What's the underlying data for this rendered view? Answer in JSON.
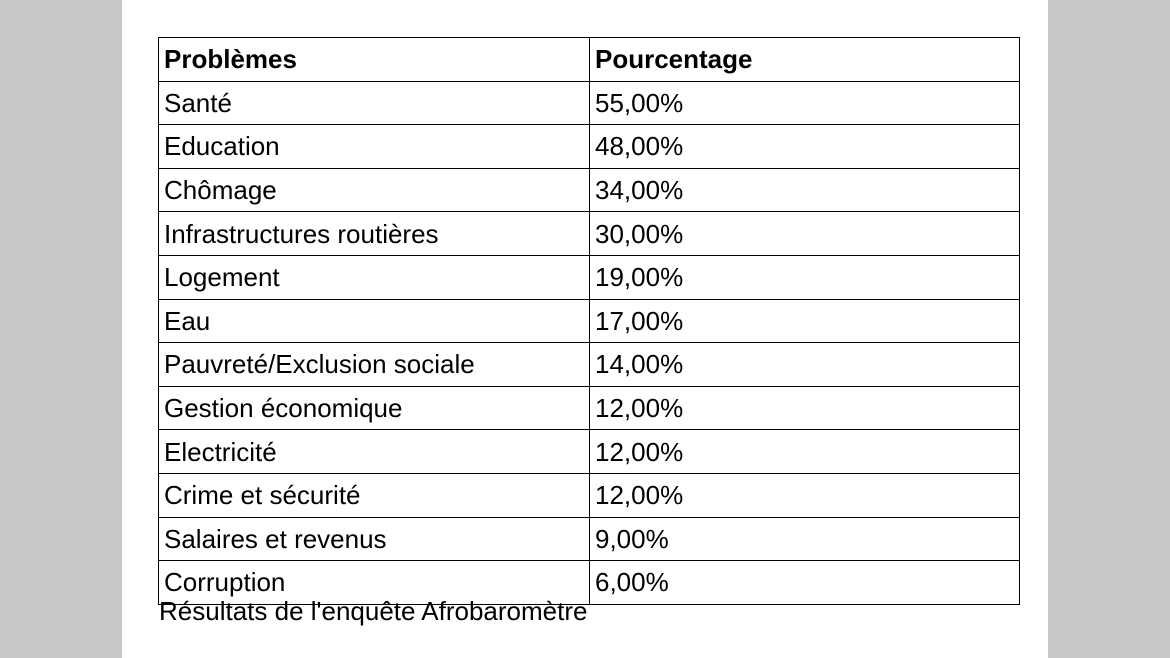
{
  "table": {
    "headers": [
      "Problèmes",
      "Pourcentage"
    ],
    "rows": [
      {
        "problem": "Santé",
        "percentage": "55,00%"
      },
      {
        "problem": "Education",
        "percentage": "48,00%"
      },
      {
        "problem": "Chômage",
        "percentage": "34,00%"
      },
      {
        "problem": "Infrastructures routières",
        "percentage": "30,00%"
      },
      {
        "problem": "Logement",
        "percentage": "19,00%"
      },
      {
        "problem": "Eau",
        "percentage": "17,00%"
      },
      {
        "problem": "Pauvreté/Exclusion sociale",
        "percentage": "14,00%"
      },
      {
        "problem": "Gestion économique",
        "percentage": "12,00%"
      },
      {
        "problem": "Electricité",
        "percentage": "12,00%"
      },
      {
        "problem": "Crime et sécurité",
        "percentage": "12,00%"
      },
      {
        "problem": "Salaires et revenus",
        "percentage": "9,00%"
      },
      {
        "problem": "Corruption",
        "percentage": "6,00%"
      }
    ]
  },
  "caption": "Résultats de l'enquête Afrobaromètre"
}
